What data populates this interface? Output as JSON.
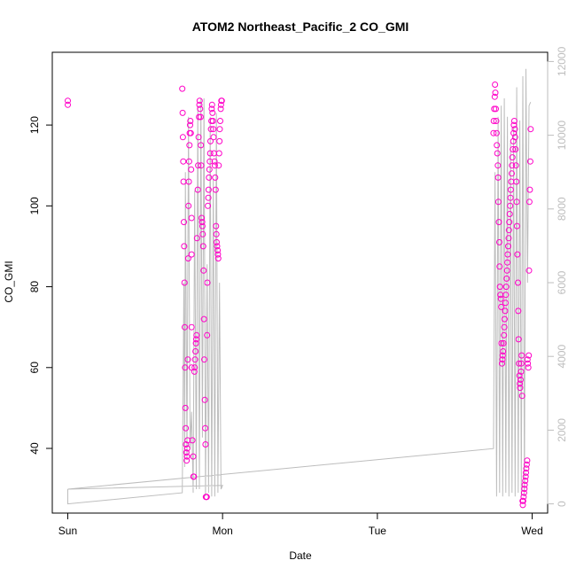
{
  "chart_data": {
    "type": "scatter",
    "title": "ATOM2 Northeast_Pacific_2 CO_GMI",
    "xlabel": "Date",
    "ylabel": "CO_GMI",
    "x_ticks": [
      {
        "label": "Sun",
        "value": 0
      },
      {
        "label": "Mon",
        "value": 1
      },
      {
        "label": "Tue",
        "value": 2
      },
      {
        "label": "Wed",
        "value": 3
      }
    ],
    "xlim": [
      -0.1,
      3.1
    ],
    "ylim": [
      24,
      138
    ],
    "y_ticks": [
      40,
      60,
      80,
      100,
      120
    ],
    "y2lim": [
      -250,
      12250
    ],
    "y2_ticks": [
      0,
      2000,
      4000,
      6000,
      8000,
      10000,
      12000
    ],
    "colors": {
      "points": "#ff00c8",
      "line": "#bdbdbd"
    },
    "grid": false,
    "series": [
      {
        "type": "scatter",
        "axis": "left",
        "x": [
          0.0,
          0.0,
          0.74,
          0.742,
          0.744,
          0.746,
          0.748,
          0.75,
          0.752,
          0.754,
          0.756,
          0.758,
          0.76,
          0.762,
          0.764,
          0.766,
          0.768,
          0.77,
          0.772,
          0.774,
          0.776,
          0.778,
          0.78,
          0.782,
          0.784,
          0.786,
          0.788,
          0.79,
          0.792,
          0.795,
          0.797,
          0.8,
          0.8,
          0.8,
          0.8,
          0.805,
          0.81,
          0.812,
          0.815,
          0.818,
          0.82,
          0.822,
          0.825,
          0.828,
          0.83,
          0.832,
          0.835,
          0.84,
          0.842,
          0.845,
          0.848,
          0.85,
          0.852,
          0.855,
          0.858,
          0.86,
          0.862,
          0.865,
          0.868,
          0.87,
          0.872,
          0.875,
          0.878,
          0.88,
          0.882,
          0.885,
          0.888,
          0.89,
          0.892,
          0.895,
          0.898,
          0.9,
          0.902,
          0.905,
          0.908,
          0.91,
          0.912,
          0.915,
          0.918,
          0.92,
          0.922,
          0.925,
          0.928,
          0.93,
          0.932,
          0.935,
          0.938,
          0.94,
          0.942,
          0.945,
          0.948,
          0.95,
          0.952,
          0.955,
          0.958,
          0.96,
          0.962,
          0.965,
          0.968,
          0.97,
          0.972,
          0.975,
          0.978,
          0.98,
          0.982,
          0.985,
          0.988,
          0.99,
          0.992,
          0.995,
          2.75,
          2.752,
          2.755,
          2.758,
          2.76,
          2.762,
          2.765,
          2.768,
          2.77,
          2.772,
          2.775,
          2.778,
          2.78,
          2.782,
          2.785,
          2.788,
          2.79,
          2.792,
          2.795,
          2.798,
          2.8,
          2.802,
          2.805,
          2.808,
          2.81,
          2.812,
          2.815,
          2.818,
          2.82,
          2.822,
          2.825,
          2.828,
          2.83,
          2.832,
          2.835,
          2.838,
          2.84,
          2.842,
          2.845,
          2.848,
          2.85,
          2.852,
          2.855,
          2.858,
          2.86,
          2.862,
          2.865,
          2.868,
          2.87,
          2.872,
          2.875,
          2.878,
          2.88,
          2.882,
          2.885,
          2.888,
          2.89,
          2.892,
          2.895,
          2.898,
          2.9,
          2.902,
          2.905,
          2.908,
          2.91,
          2.912,
          2.915,
          2.918,
          2.92,
          2.922,
          2.925,
          2.928,
          2.93,
          2.932,
          2.935,
          2.938,
          2.94,
          2.942,
          2.945,
          2.948,
          2.95,
          2.952,
          2.955,
          2.958,
          2.96,
          2.962,
          2.965,
          2.968,
          2.97,
          2.972,
          2.975,
          2.978,
          2.98,
          2.982,
          2.985,
          2.988,
          2.99
        ],
        "y": [
          126,
          125,
          129,
          123,
          117,
          111,
          106,
          96,
          90,
          81,
          70,
          60,
          50,
          45,
          41,
          39,
          37,
          38,
          40,
          42,
          62,
          87,
          100,
          106,
          111,
          115,
          118,
          120,
          121,
          118,
          109,
          97,
          88,
          70,
          60,
          42,
          38,
          33,
          33,
          59,
          60,
          62,
          64,
          66,
          67,
          68,
          92,
          104,
          110,
          117,
          122,
          125,
          126,
          124,
          122,
          115,
          110,
          97,
          96,
          95,
          93,
          90,
          84,
          72,
          62,
          52,
          45,
          41,
          28,
          28,
          28,
          68,
          81,
          100,
          102,
          104,
          107,
          109,
          111,
          113,
          116,
          119,
          121,
          124,
          125,
          123,
          121,
          119,
          117,
          113,
          111,
          110,
          107,
          104,
          95,
          93,
          91,
          90,
          89,
          88,
          87,
          110,
          113,
          116,
          119,
          121,
          124,
          125,
          126,
          126,
          118,
          121,
          124,
          127,
          130,
          128,
          124,
          121,
          118,
          115,
          113,
          110,
          107,
          101,
          96,
          91,
          85,
          80,
          78,
          77,
          75,
          66,
          61,
          62,
          63,
          64,
          66,
          68,
          70,
          72,
          74,
          76,
          78,
          80,
          82,
          84,
          86,
          88,
          90,
          92,
          94,
          96,
          98,
          100,
          102,
          104,
          106,
          108,
          110,
          112,
          114,
          116,
          118,
          120,
          121,
          119,
          117,
          114,
          110,
          106,
          101,
          95,
          88,
          81,
          74,
          67,
          61,
          58,
          56,
          55,
          57,
          59,
          61,
          63,
          53,
          27,
          26,
          27,
          28,
          29,
          30,
          31,
          32,
          33,
          34,
          35,
          36,
          37,
          62,
          61,
          60,
          63,
          84,
          101,
          104,
          111,
          119
        ]
      },
      {
        "type": "line",
        "axis": "right",
        "x": [
          0.0,
          0.0,
          0.74,
          0.75,
          0.755,
          0.76,
          0.77,
          0.78,
          0.79,
          0.8,
          0.81,
          0.82,
          0.83,
          0.84,
          0.85,
          0.86,
          0.87,
          0.88,
          0.89,
          0.9,
          0.91,
          0.92,
          0.93,
          0.94,
          0.95,
          0.96,
          0.97,
          0.98,
          0.99,
          1.0,
          0.0,
          2.75,
          2.76,
          2.77,
          2.78,
          2.79,
          2.8,
          2.81,
          2.82,
          2.83,
          2.84,
          2.85,
          2.86,
          2.87,
          2.88,
          2.89,
          2.9,
          2.91,
          2.92,
          2.93,
          2.94,
          2.95,
          2.96,
          2.97,
          2.98,
          2.99
        ],
        "y": [
          400,
          0,
          300,
          6000,
          1000,
          9000,
          1200,
          10500,
          1500,
          2500,
          300,
          8500,
          400,
          10800,
          400,
          11000,
          1800,
          11000,
          200,
          6500,
          300,
          10500,
          200,
          8800,
          200,
          10600,
          300,
          6000,
          400,
          500,
          400,
          1500,
          9000,
          200,
          10500,
          300,
          10800,
          200,
          11000,
          300,
          10500,
          200,
          9800,
          300,
          10200,
          200,
          11300,
          300,
          10400,
          200,
          11600,
          200,
          11800,
          6000,
          10800,
          10900
        ]
      }
    ]
  }
}
